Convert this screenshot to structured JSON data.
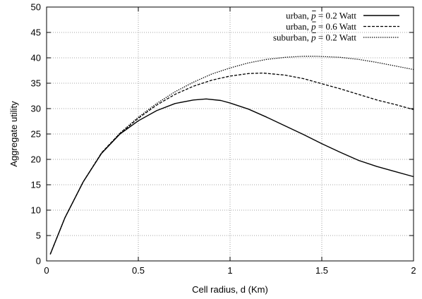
{
  "chart_data": {
    "type": "line",
    "xlabel": "Cell radius, d (Km)",
    "ylabel": "Aggregate utility",
    "xlim": [
      0,
      2
    ],
    "ylim": [
      0,
      50
    ],
    "xticks": [
      0,
      0.5,
      1,
      1.5,
      2
    ],
    "xtick_labels": [
      "0",
      "0.5",
      "1",
      "1.5",
      "2"
    ],
    "yticks": [
      0,
      5,
      10,
      15,
      20,
      25,
      30,
      35,
      40,
      45,
      50
    ],
    "ytick_labels": [
      "0",
      "5",
      "10",
      "15",
      "20",
      "25",
      "30",
      "35",
      "40",
      "45",
      "50"
    ],
    "grid": true,
    "legend_position": "top-right",
    "series": [
      {
        "name": "urban, p̄ = 0.2 Watt",
        "name_parts": [
          "urban, ",
          "p",
          " = 0.2 Watt"
        ],
        "style": "solid",
        "x": [
          0.02,
          0.1,
          0.2,
          0.3,
          0.4,
          0.5,
          0.6,
          0.7,
          0.8,
          0.87,
          0.95,
          1.0,
          1.1,
          1.2,
          1.3,
          1.4,
          1.5,
          1.6,
          1.7,
          1.8,
          1.9,
          2.0
        ],
        "y": [
          1.3,
          8.5,
          15.6,
          21.2,
          25.0,
          27.6,
          29.6,
          31.0,
          31.7,
          31.9,
          31.6,
          31.1,
          29.9,
          28.3,
          26.6,
          24.9,
          23.1,
          21.4,
          19.8,
          18.6,
          17.6,
          16.6
        ]
      },
      {
        "name": "urban, p̄ = 0.6 Watt",
        "name_parts": [
          "urban, ",
          "p",
          " = 0.6 Watt"
        ],
        "style": "dashed",
        "x": [
          0.02,
          0.1,
          0.2,
          0.3,
          0.4,
          0.5,
          0.6,
          0.7,
          0.8,
          0.9,
          1.0,
          1.1,
          1.18,
          1.3,
          1.4,
          1.5,
          1.6,
          1.7,
          1.8,
          1.9,
          2.0
        ],
        "y": [
          1.3,
          8.5,
          15.6,
          21.3,
          25.1,
          28.1,
          30.7,
          32.8,
          34.4,
          35.6,
          36.4,
          36.9,
          37.0,
          36.6,
          35.9,
          34.9,
          33.9,
          32.8,
          31.7,
          30.8,
          29.8
        ]
      },
      {
        "name": "suburban, p̄ = 0.2 Watt",
        "name_parts": [
          "suburban, ",
          "p",
          " = 0.2 Watt"
        ],
        "style": "dotted",
        "x": [
          0.02,
          0.1,
          0.2,
          0.3,
          0.4,
          0.5,
          0.6,
          0.7,
          0.8,
          0.9,
          1.0,
          1.1,
          1.2,
          1.3,
          1.4,
          1.47,
          1.6,
          1.7,
          1.8,
          1.9,
          2.0
        ],
        "y": [
          1.3,
          8.5,
          15.6,
          21.3,
          25.2,
          28.3,
          31.0,
          33.3,
          35.2,
          36.8,
          38.0,
          39.0,
          39.7,
          40.1,
          40.3,
          40.3,
          40.1,
          39.7,
          39.1,
          38.4,
          37.7
        ]
      }
    ]
  }
}
